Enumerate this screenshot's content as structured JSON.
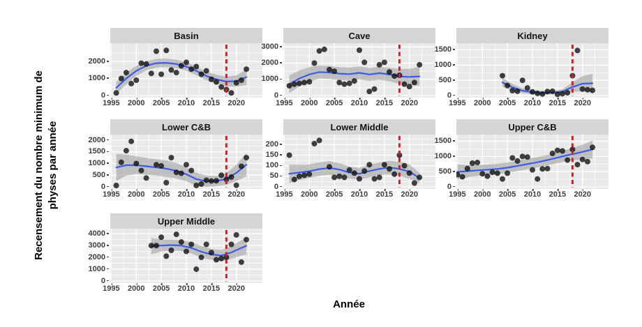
{
  "chart_data": {
    "type": "scatter",
    "title": "",
    "xlabel": "Année",
    "ylabel": "Recensement du nombre minimum de physes par année",
    "ylabel_lines": [
      "Recensement du nombre minimum de",
      "physes par année"
    ],
    "legend": "none",
    "grid": true,
    "facet_layout": "3 columns, 7 panels",
    "xlim": [
      1994.8,
      2025.2
    ],
    "xticks": [
      1995,
      2000,
      2005,
      2010,
      2015,
      2020
    ],
    "vline_x": 2018,
    "colors": {
      "point": "#111111",
      "smooth_line": "#3a5ce8",
      "ci_ribbon": "#9a9a9a",
      "vline": "#f01414",
      "panel_bg": "#e9e9e9",
      "strip_bg": "#d5d5d5",
      "grid": "#ffffff",
      "tick_text": "#3d3d3d"
    },
    "panels": [
      {
        "title": "Basin",
        "row": 0,
        "col": 0,
        "ymax": 2950,
        "yticks": [
          0,
          1000,
          2000
        ],
        "points": {
          "x": [
            1996,
            1997,
            1998,
            1999,
            2000,
            2001,
            2002,
            2003,
            2004,
            2005,
            2006,
            2007,
            2008,
            2009,
            2010,
            2011,
            2012,
            2013,
            2014,
            2015,
            2016,
            2017,
            2018,
            2019,
            2020,
            2021,
            2022
          ],
          "y": [
            150,
            1000,
            1350,
            700,
            900,
            1900,
            1850,
            1300,
            2600,
            1250,
            2650,
            1500,
            1350,
            1750,
            1950,
            1550,
            1700,
            1250,
            1450,
            950,
            800,
            500,
            350,
            150,
            750,
            900,
            1550
          ]
        },
        "smooth": {
          "x": [
            1996,
            1998,
            2000,
            2002,
            2004,
            2006,
            2008,
            2010,
            2012,
            2014,
            2016,
            2018,
            2020,
            2022
          ],
          "y": [
            450,
            1000,
            1450,
            1750,
            1900,
            1920,
            1850,
            1700,
            1450,
            1150,
            950,
            820,
            850,
            1080
          ],
          "lo": [
            100,
            650,
            1150,
            1480,
            1650,
            1670,
            1600,
            1450,
            1200,
            900,
            680,
            520,
            520,
            620
          ],
          "hi": [
            800,
            1350,
            1750,
            2020,
            2150,
            2170,
            2100,
            1950,
            1700,
            1400,
            1220,
            1120,
            1180,
            1540
          ]
        }
      },
      {
        "title": "Cave",
        "row": 0,
        "col": 1,
        "ymax": 3100,
        "yticks": [
          0,
          1000,
          2000,
          3000
        ],
        "points": {
          "x": [
            1996,
            1997,
            1998,
            1999,
            2000,
            2001,
            2002,
            2003,
            2004,
            2005,
            2006,
            2007,
            2008,
            2009,
            2010,
            2011,
            2012,
            2013,
            2014,
            2015,
            2016,
            2017,
            2018,
            2019,
            2020,
            2021,
            2022
          ],
          "y": [
            600,
            700,
            750,
            800,
            850,
            2000,
            2750,
            2850,
            1600,
            1500,
            800,
            700,
            750,
            900,
            2800,
            2050,
            250,
            400,
            1900,
            2050,
            1450,
            1200,
            1250,
            700,
            550,
            800,
            1900
          ]
        },
        "smooth": {
          "x": [
            1996,
            1998,
            2000,
            2002,
            2004,
            2006,
            2008,
            2010,
            2012,
            2014,
            2016,
            2018,
            2020,
            2022
          ],
          "y": [
            700,
            1050,
            1300,
            1450,
            1420,
            1350,
            1320,
            1400,
            1300,
            1380,
            1300,
            1180,
            1150,
            1180
          ],
          "lo": [
            150,
            550,
            850,
            1050,
            1020,
            950,
            920,
            1000,
            900,
            980,
            880,
            720,
            650,
            600
          ],
          "hi": [
            1250,
            1550,
            1750,
            1850,
            1820,
            1750,
            1720,
            1800,
            1700,
            1780,
            1720,
            1640,
            1650,
            1760
          ]
        }
      },
      {
        "title": "Kidney",
        "row": 0,
        "col": 2,
        "ymax": 1650,
        "yticks": [
          0,
          500,
          1000,
          1500
        ],
        "points": {
          "x": [
            2004,
            2005,
            2006,
            2007,
            2008,
            2009,
            2010,
            2011,
            2012,
            2013,
            2014,
            2015,
            2016,
            2017,
            2018,
            2019,
            2020,
            2021,
            2022
          ],
          "y": [
            650,
            330,
            160,
            140,
            500,
            250,
            120,
            70,
            50,
            130,
            140,
            40,
            60,
            90,
            650,
            1480,
            210,
            190,
            170
          ]
        },
        "smooth": {
          "x": [
            2004,
            2006,
            2008,
            2010,
            2012,
            2014,
            2016,
            2018,
            2020,
            2022
          ],
          "y": [
            430,
            270,
            160,
            110,
            90,
            95,
            130,
            280,
            390,
            400
          ],
          "lo": [
            280,
            160,
            80,
            40,
            30,
            35,
            60,
            120,
            140,
            90
          ],
          "hi": [
            580,
            380,
            240,
            180,
            150,
            155,
            200,
            440,
            640,
            710
          ]
        }
      },
      {
        "title": "Lower C&B",
        "row": 1,
        "col": 0,
        "ymax": 2150,
        "yticks": [
          0,
          500,
          1000,
          1500,
          2000
        ],
        "points": {
          "x": [
            1996,
            1997,
            1998,
            1999,
            2000,
            2001,
            2002,
            2004,
            2005,
            2006,
            2007,
            2008,
            2009,
            2010,
            2011,
            2012,
            2013,
            2014,
            2015,
            2016,
            2017,
            2018,
            2019,
            2020,
            2021,
            2022
          ],
          "y": [
            60,
            1050,
            1550,
            1950,
            1000,
            700,
            380,
            950,
            900,
            180,
            1250,
            620,
            580,
            950,
            700,
            60,
            120,
            280,
            250,
            260,
            500,
            320,
            420,
            70,
            880,
            1250
          ]
        },
        "smooth": {
          "x": [
            1996,
            1998,
            2000,
            2002,
            2004,
            2006,
            2008,
            2010,
            2012,
            2014,
            2016,
            2018,
            2020,
            2022
          ],
          "y": [
            830,
            930,
            930,
            880,
            830,
            780,
            690,
            540,
            330,
            240,
            250,
            340,
            600,
            950
          ],
          "lo": [
            250,
            480,
            550,
            520,
            480,
            430,
            360,
            240,
            60,
            0,
            30,
            90,
            250,
            450
          ],
          "hi": [
            1410,
            1380,
            1310,
            1240,
            1180,
            1130,
            1020,
            840,
            600,
            480,
            470,
            590,
            950,
            1450
          ]
        }
      },
      {
        "title": "Lower Middle",
        "row": 1,
        "col": 1,
        "ymax": 238,
        "yticks": [
          0,
          50,
          100,
          150,
          200
        ],
        "points": {
          "x": [
            1996,
            1997,
            1998,
            1999,
            2000,
            2001,
            2002,
            2004,
            2005,
            2006,
            2007,
            2008,
            2009,
            2010,
            2011,
            2012,
            2013,
            2014,
            2015,
            2016,
            2017,
            2018,
            2019,
            2020,
            2021,
            2022
          ],
          "y": [
            150,
            35,
            50,
            55,
            60,
            205,
            220,
            95,
            45,
            50,
            45,
            80,
            65,
            38,
            75,
            105,
            38,
            45,
            105,
            85,
            60,
            150,
            100,
            65,
            18,
            45
          ]
        },
        "smooth": {
          "x": [
            1996,
            1998,
            2000,
            2002,
            2004,
            2006,
            2008,
            2010,
            2012,
            2014,
            2016,
            2018,
            2020,
            2022
          ],
          "y": [
            62,
            68,
            74,
            84,
            90,
            82,
            68,
            62,
            75,
            85,
            92,
            85,
            72,
            42
          ],
          "lo": [
            18,
            32,
            42,
            52,
            58,
            52,
            40,
            34,
            45,
            55,
            60,
            52,
            38,
            18
          ],
          "hi": [
            106,
            104,
            106,
            116,
            122,
            112,
            96,
            90,
            105,
            115,
            124,
            118,
            106,
            66
          ]
        }
      },
      {
        "title": "Upper C&B",
        "row": 1,
        "col": 2,
        "ymax": 1650,
        "yticks": [
          0,
          500,
          1000,
          1500
        ],
        "points": {
          "x": [
            1995,
            1996,
            1997,
            1998,
            1999,
            2000,
            2001,
            2002,
            2003,
            2004,
            2005,
            2006,
            2007,
            2008,
            2009,
            2010,
            2011,
            2012,
            2013,
            2014,
            2015,
            2016,
            2017,
            2018,
            2019,
            2020,
            2021,
            2022
          ],
          "y": [
            400,
            330,
            600,
            780,
            800,
            430,
            350,
            480,
            450,
            260,
            450,
            950,
            850,
            1000,
            980,
            560,
            260,
            590,
            600,
            1100,
            1200,
            1180,
            880,
            1230,
            730,
            900,
            830,
            1300
          ]
        },
        "smooth": {
          "x": [
            1995,
            1997,
            1999,
            2001,
            2003,
            2005,
            2007,
            2009,
            2011,
            2013,
            2015,
            2017,
            2019,
            2021,
            2022
          ],
          "y": [
            490,
            515,
            540,
            565,
            590,
            630,
            690,
            750,
            810,
            880,
            960,
            1040,
            1110,
            1190,
            1230
          ],
          "lo": [
            240,
            315,
            360,
            395,
            420,
            460,
            520,
            580,
            640,
            710,
            780,
            850,
            890,
            930,
            930
          ],
          "hi": [
            740,
            715,
            720,
            735,
            760,
            800,
            860,
            920,
            980,
            1050,
            1140,
            1230,
            1330,
            1450,
            1530
          ]
        }
      },
      {
        "title": "Upper Middle",
        "row": 2,
        "col": 0,
        "ymax": 4250,
        "yticks": [
          0,
          1000,
          2000,
          3000,
          4000
        ],
        "points": {
          "x": [
            2003,
            2004,
            2005,
            2006,
            2007,
            2008,
            2009,
            2010,
            2011,
            2012,
            2013,
            2014,
            2015,
            2016,
            2017,
            2018,
            2019,
            2020,
            2021,
            2022
          ],
          "y": [
            3000,
            3000,
            3700,
            2100,
            2600,
            3950,
            3300,
            2500,
            3100,
            1000,
            2000,
            3100,
            2400,
            1800,
            1900,
            2000,
            3100,
            3900,
            1600,
            3500
          ]
        },
        "smooth": {
          "x": [
            2003,
            2005,
            2007,
            2009,
            2011,
            2013,
            2015,
            2017,
            2019,
            2021,
            2022
          ],
          "y": [
            2950,
            3000,
            3040,
            2990,
            2800,
            2480,
            2250,
            2150,
            2420,
            2800,
            2980
          ],
          "lo": [
            2250,
            2500,
            2580,
            2530,
            2330,
            2000,
            1780,
            1680,
            1880,
            2150,
            2230
          ],
          "hi": [
            3650,
            3500,
            3500,
            3450,
            3270,
            2960,
            2720,
            2620,
            2960,
            3450,
            3730
          ]
        }
      }
    ]
  }
}
